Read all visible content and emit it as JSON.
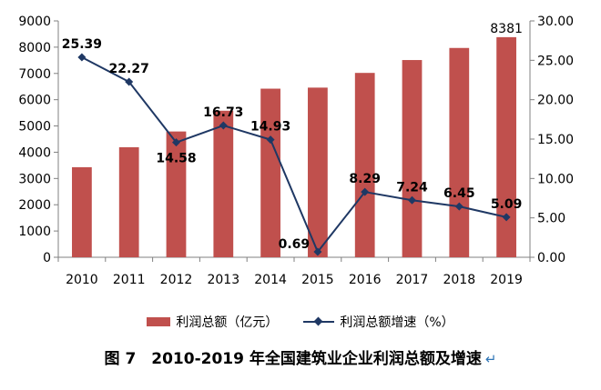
{
  "chart_data": {
    "type": "bar",
    "categories": [
      "2010",
      "2011",
      "2012",
      "2013",
      "2014",
      "2015",
      "2016",
      "2017",
      "2018",
      "2019"
    ],
    "series": [
      {
        "name": "利润总额（亿元）",
        "type": "bar",
        "axis": "left",
        "color": "#C0504D",
        "values": [
          3430,
          4190,
          4790,
          5580,
          6420,
          6460,
          7020,
          7510,
          7970,
          8381
        ],
        "labels": [
          "",
          "",
          "",
          "",
          "",
          "",
          "",
          "",
          "",
          "8381"
        ]
      },
      {
        "name": "利润总额增速（%）",
        "type": "line",
        "axis": "right",
        "color": "#1F3864",
        "values": [
          25.39,
          22.27,
          14.58,
          16.73,
          14.93,
          0.69,
          8.29,
          7.24,
          6.45,
          5.09
        ],
        "labels": [
          "25.39",
          "22.27",
          "14.58",
          "16.73",
          "14.93",
          "0.69",
          "8.29",
          "7.24",
          "6.45",
          "5.09"
        ]
      }
    ],
    "y_left": {
      "ylim": [
        0,
        9000
      ],
      "ticks": [
        "0",
        "1000",
        "2000",
        "3000",
        "4000",
        "5000",
        "6000",
        "7000",
        "8000",
        "9000"
      ]
    },
    "y_right": {
      "ylim": [
        0,
        30
      ],
      "ticks": [
        "0.00",
        "5.00",
        "10.00",
        "15.00",
        "20.00",
        "25.00",
        "30.00"
      ]
    },
    "grid": false,
    "legend": "bottom"
  },
  "legend": {
    "bar_label": "利润总额（亿元）",
    "line_label": "利润总额增速（%）"
  },
  "caption": {
    "text": "图 7　2010-2019 年全国建筑业企业利润总额及增速",
    "mark": "↵"
  }
}
